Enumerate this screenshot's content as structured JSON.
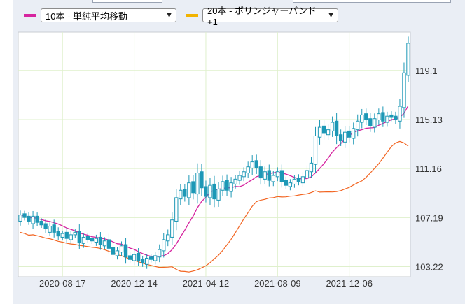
{
  "controls": {
    "ma_select": {
      "selected": "10本 - 単純平均移動",
      "color": "#d6249f"
    },
    "bb_select": {
      "selected": "20本 - ボリンジャーバンド+1",
      "color": "#f2b300"
    }
  },
  "chart_data": {
    "type": "candlestick",
    "grid": true,
    "y_ticks": [
      "119.1",
      "115.13",
      "111.16",
      "107.19",
      "103.22"
    ],
    "y_tick_values": [
      119.1,
      115.13,
      111.16,
      107.19,
      103.22
    ],
    "x_ticks": [
      "2020-08-17",
      "2020-12-14",
      "2021-04-12",
      "2021-08-09",
      "2021-12-06"
    ],
    "x_tick_index": [
      10,
      27,
      44,
      61,
      78
    ],
    "ylim": [
      102.4,
      122.2
    ],
    "n_weeks": 93,
    "colors": {
      "up": "#ffffff",
      "down": "#1d98b6",
      "candle_edge": "#1d98b6",
      "ma10": "#d6249f",
      "bb_lower": "#f26522"
    },
    "closes": [
      107.4,
      107.2,
      106.9,
      107.3,
      106.8,
      106.6,
      106.3,
      106.5,
      106.0,
      105.7,
      105.9,
      105.5,
      105.8,
      106.0,
      105.2,
      105.6,
      105.4,
      105.3,
      105.5,
      105.0,
      105.3,
      104.7,
      104.2,
      104.5,
      104.9,
      104.0,
      103.8,
      104.2,
      103.7,
      103.5,
      103.9,
      103.8,
      104.1,
      104.6,
      105.4,
      105.8,
      107.0,
      108.8,
      109.4,
      108.9,
      110.0,
      109.2,
      110.8,
      109.6,
      108.9,
      109.8,
      108.7,
      109.5,
      110.1,
      109.4,
      110.0,
      110.3,
      110.6,
      110.9,
      111.3,
      111.7,
      111.2,
      110.4,
      110.9,
      110.2,
      110.6,
      110.9,
      110.1,
      109.8,
      110.0,
      110.3,
      110.1,
      110.5,
      111.0,
      111.6,
      113.8,
      114.5,
      114.0,
      114.3,
      114.9,
      113.8,
      113.4,
      114.1,
      113.7,
      114.4,
      115.0,
      115.5,
      115.1,
      114.6,
      115.2,
      115.6,
      115.0,
      115.4,
      115.3,
      115.1,
      116.2,
      118.9,
      121.3
    ],
    "open_offsets": [
      -0.5,
      0.3,
      0.4,
      -0.6,
      0.5,
      0.3,
      0.4,
      -0.5,
      0.6,
      0.4,
      -0.3,
      0.5,
      -0.4,
      -0.2,
      0.9,
      -0.5,
      0.3,
      0.2,
      -0.3,
      0.6,
      -0.4,
      0.7,
      0.6,
      -0.4,
      -0.5,
      1.0,
      0.3,
      -0.5,
      0.6,
      0.3,
      -0.5,
      0.2,
      -0.4,
      -0.6,
      -0.9,
      -0.5,
      -1.4,
      -1.9,
      -0.7,
      0.6,
      -1.2,
      0.9,
      -1.7,
      1.3,
      0.8,
      -1.0,
      1.2,
      -0.9,
      -0.7,
      0.8,
      -0.7,
      -0.4,
      -0.4,
      -0.4,
      -0.5,
      -0.5,
      0.6,
      0.9,
      -0.6,
      0.8,
      -0.5,
      -0.4,
      0.9,
      0.4,
      -0.3,
      -0.4,
      0.3,
      -0.5,
      -0.6,
      -0.7,
      -2.3,
      -0.8,
      0.6,
      -0.4,
      -0.7,
      1.2,
      0.5,
      -0.8,
      0.5,
      -0.8,
      -0.7,
      -0.6,
      0.5,
      0.6,
      -0.7,
      -0.5,
      0.7,
      -0.5,
      0.2,
      0.3,
      -1.2,
      -2.8,
      -2.6
    ],
    "wick": [
      0.6,
      0.4,
      0.5,
      0.7,
      0.5,
      0.4,
      0.6,
      0.5,
      0.7,
      0.5,
      0.4,
      0.6,
      0.5,
      0.4,
      0.9,
      0.6,
      0.4,
      0.4,
      0.5,
      0.7,
      0.5,
      0.8,
      0.7,
      0.5,
      0.6,
      0.9,
      0.5,
      0.6,
      0.7,
      0.5,
      0.6,
      0.4,
      0.5,
      0.7,
      0.9,
      0.7,
      1.0,
      1.2,
      0.8,
      0.7,
      1.0,
      0.9,
      1.3,
      1.1,
      0.8,
      1.0,
      1.1,
      0.9,
      0.8,
      0.8,
      0.8,
      0.6,
      0.6,
      0.6,
      0.7,
      0.9,
      0.8,
      0.9,
      0.7,
      0.8,
      0.6,
      0.6,
      0.8,
      0.5,
      0.5,
      0.5,
      0.5,
      0.6,
      0.7,
      0.8,
      1.2,
      1.0,
      0.8,
      0.7,
      0.8,
      1.1,
      0.7,
      0.8,
      0.7,
      0.8,
      0.9,
      0.8,
      0.7,
      0.8,
      0.7,
      0.7,
      0.8,
      0.6,
      0.5,
      0.6,
      1.0,
      1.4,
      0.9
    ]
  }
}
